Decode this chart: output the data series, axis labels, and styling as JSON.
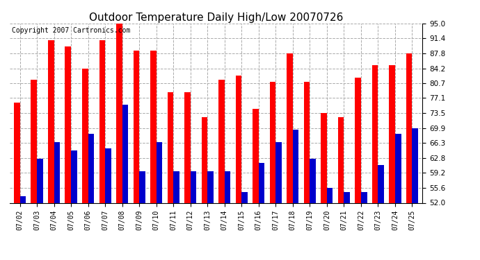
{
  "title": "Outdoor Temperature Daily High/Low 20070726",
  "copyright": "Copyright 2007 Cartronics.com",
  "dates": [
    "07/02",
    "07/03",
    "07/04",
    "07/05",
    "07/06",
    "07/07",
    "07/08",
    "07/09",
    "07/10",
    "07/11",
    "07/12",
    "07/13",
    "07/14",
    "07/15",
    "07/16",
    "07/17",
    "07/18",
    "07/19",
    "07/20",
    "07/21",
    "07/22",
    "07/23",
    "07/24",
    "07/25"
  ],
  "highs": [
    76.0,
    81.5,
    91.0,
    89.5,
    84.2,
    91.0,
    95.0,
    88.5,
    88.5,
    78.5,
    78.5,
    72.5,
    81.5,
    82.5,
    74.5,
    81.0,
    87.8,
    81.0,
    73.5,
    72.5,
    82.0,
    85.0,
    85.0,
    87.8
  ],
  "lows": [
    53.5,
    62.5,
    66.5,
    64.5,
    68.5,
    65.0,
    75.5,
    59.5,
    66.5,
    59.5,
    59.5,
    59.5,
    59.5,
    54.5,
    61.5,
    66.5,
    69.5,
    62.5,
    55.5,
    54.5,
    54.5,
    61.0,
    68.5,
    69.9
  ],
  "high_color": "#ff0000",
  "low_color": "#0000cc",
  "background_color": "#ffffff",
  "grid_color": "#aaaaaa",
  "ylim": [
    52.0,
    95.0
  ],
  "yticks": [
    52.0,
    55.6,
    59.2,
    62.8,
    66.3,
    69.9,
    73.5,
    77.1,
    80.7,
    84.2,
    87.8,
    91.4,
    95.0
  ],
  "title_fontsize": 11,
  "copyright_fontsize": 7,
  "bar_width": 0.35
}
